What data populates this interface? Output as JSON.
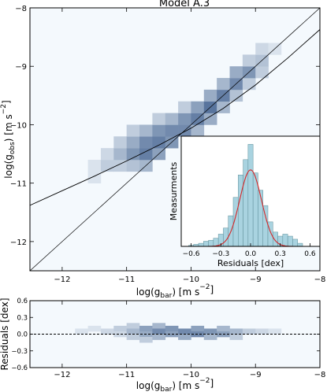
{
  "chart_data": [
    {
      "id": "main",
      "type": "heatmap",
      "title": "Model A.3",
      "xlabel": "log(g_bar) [m s^-2]",
      "ylabel": "log(g_obs) [m s^-2]",
      "xlim": [
        -12.5,
        -8
      ],
      "ylim": [
        -12.5,
        -8
      ],
      "xticks": [
        -12,
        -11,
        -10,
        -9,
        -8
      ],
      "xtick_labels": [
        "−12",
        "−11",
        "−10",
        "−9",
        "−8"
      ],
      "yticks": [
        -12,
        -11,
        -10,
        -9,
        -8
      ],
      "ytick_labels": [
        "−12",
        "−11",
        "−10",
        "−9",
        "−8"
      ],
      "lines": [
        {
          "name": "",
          "x": [
            -12.5,
            -12.0,
            -11.5,
            -11.0,
            -10.5,
            -10.0,
            -9.5,
            -9.0,
            -8.5,
            -8.0
          ],
          "y": [
            -11.38,
            -11.13,
            -10.88,
            -10.62,
            -10.35,
            -10.06,
            -9.72,
            -9.32,
            -8.86,
            -8.37
          ]
        },
        {
          "name": "",
          "x": [
            -12.5,
            -8.0
          ],
          "y": [
            -12.5,
            -8.0
          ]
        }
      ],
      "density_cells": [
        [
          -11.6,
          -11.0,
          0.1
        ],
        [
          -11.6,
          -10.8,
          0.1
        ],
        [
          -11.4,
          -10.8,
          0.2
        ],
        [
          -11.4,
          -10.6,
          0.15
        ],
        [
          -11.2,
          -10.8,
          0.2
        ],
        [
          -11.2,
          -10.6,
          0.3
        ],
        [
          -11.2,
          -10.4,
          0.2
        ],
        [
          -11.0,
          -10.8,
          0.25
        ],
        [
          -11.0,
          -10.6,
          0.45
        ],
        [
          -11.0,
          -10.4,
          0.35
        ],
        [
          -11.0,
          -10.2,
          0.2
        ],
        [
          -10.8,
          -10.8,
          0.3
        ],
        [
          -10.8,
          -10.6,
          0.55
        ],
        [
          -10.8,
          -10.4,
          0.5
        ],
        [
          -10.8,
          -10.2,
          0.3
        ],
        [
          -10.6,
          -10.6,
          0.4
        ],
        [
          -10.6,
          -10.4,
          0.55
        ],
        [
          -10.6,
          -10.2,
          0.45
        ],
        [
          -10.6,
          -10.0,
          0.2
        ],
        [
          -10.4,
          -10.4,
          0.45
        ],
        [
          -10.4,
          -10.2,
          0.5
        ],
        [
          -10.4,
          -10.0,
          0.3
        ],
        [
          -10.2,
          -10.2,
          0.5
        ],
        [
          -10.2,
          -10.0,
          0.45
        ],
        [
          -10.2,
          -9.8,
          0.2
        ],
        [
          -10.0,
          -10.2,
          0.3
        ],
        [
          -10.0,
          -10.0,
          0.55
        ],
        [
          -10.0,
          -9.8,
          0.4
        ],
        [
          -9.8,
          -10.0,
          0.35
        ],
        [
          -9.8,
          -9.8,
          0.6
        ],
        [
          -9.8,
          -9.6,
          0.35
        ],
        [
          -9.6,
          -9.8,
          0.3
        ],
        [
          -9.6,
          -9.6,
          0.55
        ],
        [
          -9.6,
          -9.4,
          0.3
        ],
        [
          -9.4,
          -9.6,
          0.25
        ],
        [
          -9.4,
          -9.4,
          0.5
        ],
        [
          -9.4,
          -9.2,
          0.35
        ],
        [
          -9.2,
          -9.4,
          0.2
        ],
        [
          -9.2,
          -9.2,
          0.45
        ],
        [
          -9.2,
          -9.0,
          0.2
        ],
        [
          -9.0,
          -9.2,
          0.2
        ],
        [
          -9.0,
          -9.0,
          0.25
        ],
        [
          -9.0,
          -8.8,
          0.15
        ],
        [
          -8.8,
          -8.8,
          0.1
        ]
      ],
      "inset": {
        "type": "bar",
        "xlabel": "Residuals [dex]",
        "ylabel": "Measurments",
        "xlim": [
          -0.7,
          0.7
        ],
        "xticks": [
          -0.6,
          -0.3,
          0.0,
          0.3,
          0.6
        ],
        "xtick_labels": [
          "−0.6",
          "−0.3",
          "0.0",
          "0.3",
          "0.6"
        ],
        "bins": [
          -0.6,
          -0.55,
          -0.5,
          -0.45,
          -0.4,
          -0.35,
          -0.3,
          -0.25,
          -0.2,
          -0.15,
          -0.1,
          -0.05,
          0.0,
          0.05,
          0.1,
          0.15,
          0.2,
          0.25,
          0.3,
          0.35,
          0.4,
          0.45,
          0.5
        ],
        "values": [
          0.01,
          0.02,
          0.03,
          0.05,
          0.06,
          0.08,
          0.12,
          0.18,
          0.3,
          0.48,
          0.7,
          0.85,
          1.0,
          0.72,
          0.55,
          0.4,
          0.24,
          0.14,
          0.1,
          0.12,
          0.1,
          0.07,
          0.03
        ],
        "fit": {
          "type": "gaussian",
          "mean": 0.0,
          "sigma": 0.11,
          "peak": 0.75
        }
      }
    },
    {
      "id": "residuals",
      "type": "heatmap",
      "xlabel": "log(g_bar) [m s^-2]",
      "ylabel": "Residuals [dex]",
      "xlim": [
        -12.5,
        -8
      ],
      "ylim": [
        -0.6,
        0.6
      ],
      "xticks": [
        -12,
        -11,
        -10,
        -9,
        -8
      ],
      "xtick_labels": [
        "−12",
        "−11",
        "−10",
        "−9",
        "−8"
      ],
      "yticks": [
        -0.6,
        -0.3,
        0.0,
        0.3,
        0.6
      ],
      "ytick_labels": [
        "−0.6",
        "−0.3",
        "0.0",
        "0.3",
        "0.6"
      ],
      "zero_line": 0,
      "density_cells": [
        [
          -11.8,
          0.0,
          0.1
        ],
        [
          -11.6,
          0.05,
          0.1
        ],
        [
          -11.4,
          0.0,
          0.15
        ],
        [
          -11.2,
          0.05,
          0.2
        ],
        [
          -11.2,
          -0.05,
          0.15
        ],
        [
          -11.0,
          0.1,
          0.2
        ],
        [
          -11.0,
          0.0,
          0.3
        ],
        [
          -11.0,
          -0.1,
          0.2
        ],
        [
          -10.8,
          0.05,
          0.4
        ],
        [
          -10.8,
          -0.05,
          0.35
        ],
        [
          -10.8,
          -0.15,
          0.2
        ],
        [
          -10.6,
          0.1,
          0.3
        ],
        [
          -10.6,
          0.0,
          0.5
        ],
        [
          -10.6,
          -0.1,
          0.3
        ],
        [
          -10.4,
          0.05,
          0.45
        ],
        [
          -10.4,
          -0.05,
          0.4
        ],
        [
          -10.2,
          0.0,
          0.5
        ],
        [
          -10.2,
          -0.1,
          0.35
        ],
        [
          -10.0,
          0.05,
          0.4
        ],
        [
          -10.0,
          -0.05,
          0.5
        ],
        [
          -9.8,
          0.0,
          0.45
        ],
        [
          -9.8,
          -0.1,
          0.3
        ],
        [
          -9.6,
          0.05,
          0.3
        ],
        [
          -9.6,
          -0.05,
          0.4
        ],
        [
          -9.4,
          0.0,
          0.3
        ],
        [
          -9.4,
          -0.1,
          0.2
        ],
        [
          -9.2,
          0.0,
          0.2
        ],
        [
          -9.0,
          0.0,
          0.15
        ],
        [
          -8.8,
          0.0,
          0.1
        ]
      ]
    }
  ]
}
